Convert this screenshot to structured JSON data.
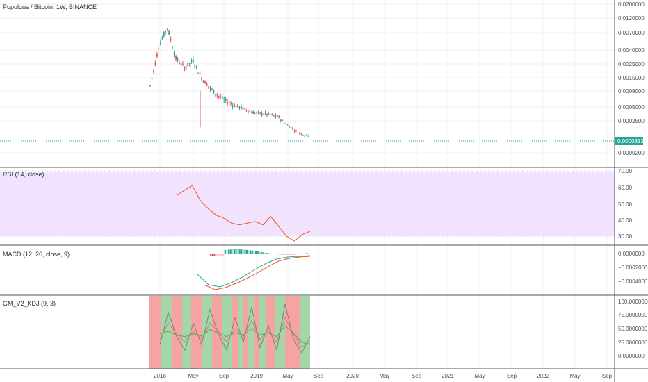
{
  "title": "Populous / Bitcoin, 1W, BINANCE",
  "price_axis": [
    "0.0200000",
    "0.0120000",
    "0.0070000",
    "0.0040000",
    "0.0025000",
    "0.0015000",
    "0.0009000",
    "0.0005000",
    "0.0002500",
    "0.0000200"
  ],
  "last_price": "0.0000813",
  "colors": {
    "up": "#26a69a",
    "down": "#ef5350",
    "rsi_line": "#f4511e",
    "rsi_band": "#f1e3fd",
    "macd_line": "#26a69a",
    "signal_line": "#f4511e",
    "kdj_red": "#f5a3a3",
    "kdj_green": "#a5d6a7",
    "grid": "#e8eaed",
    "accent": "#26a69a"
  },
  "rsi": {
    "label": "RSI (14, close)",
    "axis": [
      "70.00",
      "60.00",
      "50.00",
      "40.00",
      "30.00"
    ]
  },
  "macd": {
    "label": "MACD (12, 26, close, 9)",
    "axis": [
      "0.0000000",
      "−0.0002000",
      "−0.0004000"
    ]
  },
  "kdj": {
    "label": "GM_V2_KDJ (9, 3)",
    "axis": [
      "100.0000000",
      "75.0000000",
      "50.0000000",
      "25.0000000",
      "0.0000000"
    ]
  },
  "time_axis": [
    "2018",
    "May",
    "Sep",
    "2019",
    "May",
    "Sep",
    "2020",
    "May",
    "Sep",
    "2021",
    "May",
    "Sep",
    "2022",
    "May",
    "Sep"
  ],
  "chart_data": [
    {
      "type": "candlestick",
      "title": "Populous / Bitcoin, 1W, BINANCE",
      "scale": "log",
      "ylim": [
        1e-05,
        0.02
      ],
      "close_path": [
        [
          0,
          0.0011
        ],
        [
          5,
          0.0045
        ],
        [
          10,
          0.0085
        ],
        [
          15,
          0.003
        ],
        [
          20,
          0.0022
        ],
        [
          25,
          0.0028
        ],
        [
          30,
          0.0015
        ],
        [
          35,
          0.001
        ],
        [
          40,
          0.00075
        ],
        [
          45,
          0.0006
        ],
        [
          50,
          0.00052
        ],
        [
          55,
          0.00045
        ],
        [
          60,
          0.00038
        ],
        [
          65,
          0.00036
        ],
        [
          70,
          0.00034
        ],
        [
          75,
          0.0003
        ],
        [
          80,
          0.00018
        ],
        [
          85,
          0.00011
        ],
        [
          90,
          8e-05
        ],
        [
          92,
          8.13e-05
        ]
      ]
    },
    {
      "type": "line",
      "title": "RSI (14, close)",
      "ylim": [
        25,
        70
      ],
      "y": [
        55,
        58,
        61,
        52,
        47,
        43,
        41,
        38,
        37,
        38,
        39,
        37,
        42,
        36,
        30,
        27,
        31,
        33
      ]
    },
    {
      "type": "line",
      "title": "MACD (12, 26, close, 9)",
      "series": [
        {
          "values": [
            -0.0003,
            -0.00045,
            -0.00048,
            -0.00042,
            -0.00034,
            -0.00024,
            -0.00015,
            -8e-05,
            -5e-05,
            -4e-05,
            -3e-05
          ]
        },
        {
          "values": [
            -0.00045,
            -0.00052,
            -0.00049,
            -0.00043,
            -0.00036,
            -0.00028,
            -0.00019,
            -0.00011,
            -7e-05,
            -5e-05,
            -4e-05
          ]
        }
      ]
    },
    {
      "type": "line",
      "title": "GM_V2_KDJ (9, 3)",
      "ylim": [
        -10,
        105
      ],
      "series": [
        {
          "values": [
            20,
            80,
            35,
            10,
            60,
            20,
            85,
            40,
            10,
            70,
            25,
            90,
            15,
            55,
            10,
            95,
            30,
            5,
            35
          ]
        },
        {
          "values": [
            30,
            60,
            40,
            25,
            45,
            30,
            60,
            45,
            25,
            50,
            35,
            65,
            30,
            45,
            25,
            70,
            40,
            15,
            25
          ]
        },
        {
          "values": [
            40,
            45,
            38,
            35,
            40,
            36,
            48,
            42,
            35,
            42,
            38,
            50,
            38,
            42,
            35,
            55,
            42,
            25,
            20
          ]
        }
      ]
    }
  ]
}
